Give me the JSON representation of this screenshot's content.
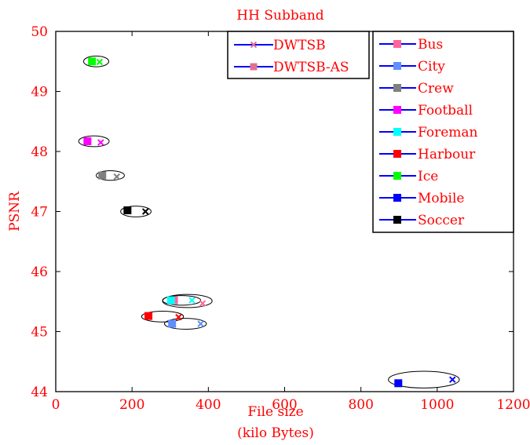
{
  "chart_data": {
    "type": "scatter",
    "title": "HH Subband",
    "xlabel": [
      "File size",
      "(kilo Bytes)"
    ],
    "ylabel": "PSNR",
    "xlim": [
      0,
      1200
    ],
    "ylim": [
      44,
      50
    ],
    "xticks": [
      "0",
      "200",
      "400",
      "600",
      "800",
      "1000",
      "1200"
    ],
    "yticks": [
      "44",
      "45",
      "46",
      "47",
      "48",
      "49",
      "50"
    ],
    "grid": false,
    "text_color": "#ff0000",
    "legend_markers": {
      "position": "top-center",
      "line_color": "#0000ff",
      "entries": [
        {
          "label": "DWTSB",
          "marker": "x",
          "color": "#e07090"
        },
        {
          "label": "DWTSB-AS",
          "marker": "square",
          "color": "#e07090"
        }
      ]
    },
    "legend_sequences": {
      "position": "top-right",
      "line_color": "#0000ff"
    },
    "series": [
      {
        "name": "Bus",
        "color": "#ff6699",
        "dwtsb": [
          385,
          45.47
        ],
        "dwtsb_as": [
          310,
          45.52
        ],
        "ellipse": {
          "center": [
            345,
            45.51
          ],
          "rx": 65,
          "ry": 0.11
        }
      },
      {
        "name": "City",
        "color": "#5f8fff",
        "dwtsb": [
          380,
          45.13
        ],
        "dwtsb_as": [
          305,
          45.13
        ],
        "ellipse": {
          "center": [
            340,
            45.13
          ],
          "rx": 55,
          "ry": 0.09
        }
      },
      {
        "name": "Crew",
        "color": "#808080",
        "dwtsb": [
          160,
          47.58
        ],
        "dwtsb_as": [
          122,
          47.6
        ],
        "ellipse": {
          "center": [
            143,
            47.6
          ],
          "rx": 37,
          "ry": 0.08
        }
      },
      {
        "name": "Football",
        "color": "#ff00ff",
        "dwtsb": [
          118,
          48.15
        ],
        "dwtsb_as": [
          83,
          48.17
        ],
        "ellipse": {
          "center": [
            100,
            48.17
          ],
          "rx": 40,
          "ry": 0.09
        }
      },
      {
        "name": "Foreman",
        "color": "#00ffff",
        "dwtsb": [
          357,
          45.52
        ],
        "dwtsb_as": [
          302,
          45.52
        ],
        "ellipse": {
          "center": [
            330,
            45.52
          ],
          "rx": 50,
          "ry": 0.08
        }
      },
      {
        "name": "Harbour",
        "color": "#ff0000",
        "dwtsb": [
          322,
          45.24
        ],
        "dwtsb_as": [
          243,
          45.26
        ],
        "ellipse": {
          "center": [
            280,
            45.25
          ],
          "rx": 55,
          "ry": 0.09
        }
      },
      {
        "name": "Ice",
        "color": "#00ff00",
        "dwtsb": [
          115,
          49.49
        ],
        "dwtsb_as": [
          95,
          49.5
        ],
        "ellipse": {
          "center": [
            106,
            49.5
          ],
          "rx": 33,
          "ry": 0.09
        }
      },
      {
        "name": "Mobile",
        "color": "#0000ff",
        "dwtsb": [
          1040,
          44.2
        ],
        "dwtsb_as": [
          898,
          44.14
        ],
        "ellipse": {
          "center": [
            965,
            44.2
          ],
          "rx": 93,
          "ry": 0.14
        }
      },
      {
        "name": "Soccer",
        "color": "#000000",
        "dwtsb": [
          235,
          47.0
        ],
        "dwtsb_as": [
          188,
          47.02
        ],
        "ellipse": {
          "center": [
            210,
            47.0
          ],
          "rx": 40,
          "ry": 0.09
        }
      }
    ]
  }
}
